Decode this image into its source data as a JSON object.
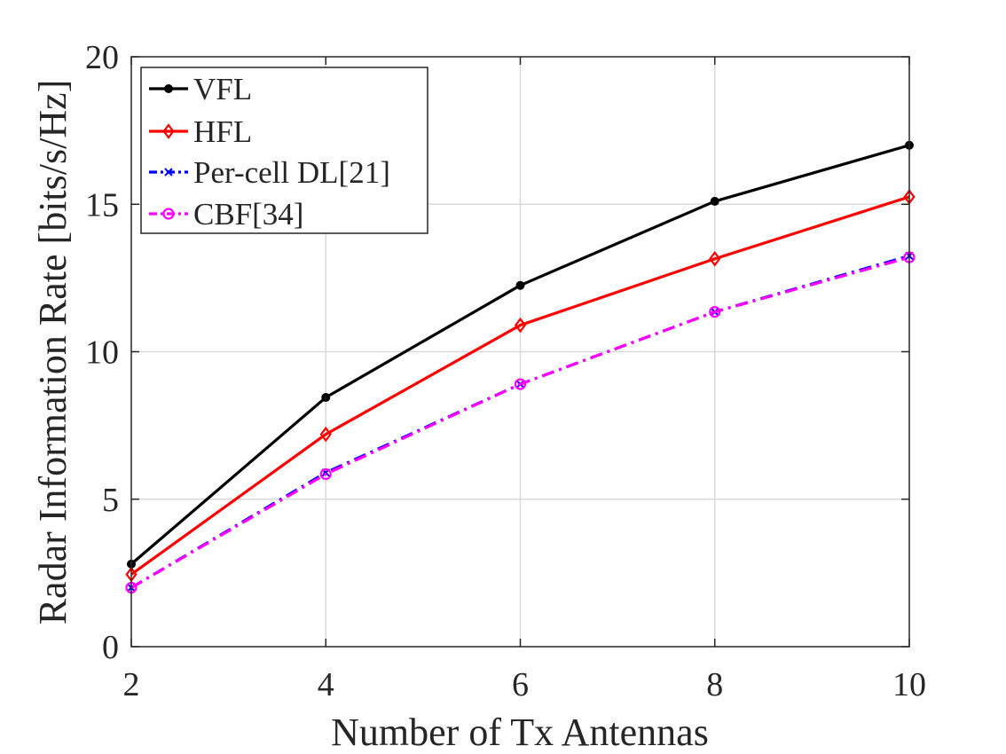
{
  "chart_data": {
    "type": "line",
    "title": "",
    "xlabel": "Number of Tx Antennas",
    "ylabel": "Radar Information Rate [bits/s/Hz]",
    "x": [
      2,
      4,
      6,
      8,
      10
    ],
    "xlim": [
      2,
      10
    ],
    "ylim": [
      0,
      20
    ],
    "xticks": [
      2,
      4,
      6,
      8,
      10
    ],
    "yticks": [
      0,
      5,
      10,
      15,
      20
    ],
    "xtick_labels": [
      "2",
      "4",
      "6",
      "8",
      "10"
    ],
    "ytick_labels": [
      "0",
      "5",
      "10",
      "15",
      "20"
    ],
    "grid": true,
    "legend_position": "top-left",
    "series": [
      {
        "name": "VFL",
        "values": [
          2.8,
          8.45,
          12.25,
          15.1,
          17.0
        ],
        "color": "#000000",
        "marker": "dot",
        "dash": "solid"
      },
      {
        "name": "HFL",
        "values": [
          2.45,
          7.2,
          10.9,
          13.15,
          15.25
        ],
        "color": "#ff0000",
        "marker": "diamond",
        "dash": "solid"
      },
      {
        "name": "Per-cell DL[21]",
        "values": [
          2.0,
          5.9,
          8.9,
          11.35,
          13.25
        ],
        "color": "#0000ff",
        "marker": "x",
        "dash": "dashdot"
      },
      {
        "name": "CBF[34]",
        "values": [
          2.0,
          5.85,
          8.9,
          11.35,
          13.2
        ],
        "color": "#ff00ff",
        "marker": "circle",
        "dash": "dashdot"
      }
    ]
  }
}
